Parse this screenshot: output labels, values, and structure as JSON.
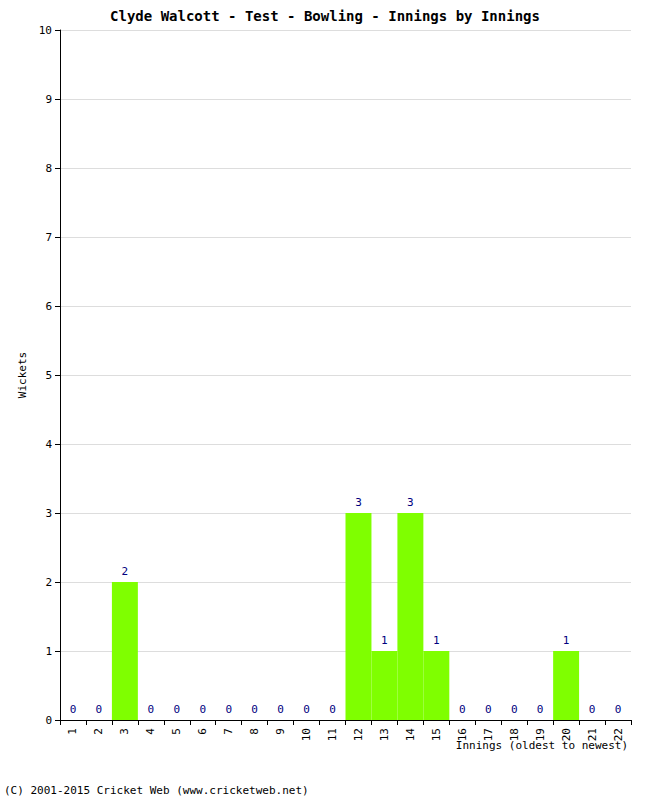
{
  "chart_data": {
    "type": "bar",
    "title": "Clyde Walcott - Test - Bowling - Innings by Innings",
    "x_label": "Innings (oldest to newest)",
    "y_label": "Wickets",
    "annotations": [
      "(C) 2001-2015 Cricket Web (www.cricketweb.net)"
    ],
    "categories": [
      "1",
      "2",
      "3",
      "4",
      "5",
      "6",
      "7",
      "8",
      "9",
      "10",
      "11",
      "12",
      "13",
      "14",
      "15",
      "16",
      "17",
      "18",
      "19",
      "20",
      "21",
      "22"
    ],
    "values": [
      0,
      0,
      2,
      0,
      0,
      0,
      0,
      0,
      0,
      0,
      0,
      3,
      1,
      3,
      1,
      0,
      0,
      0,
      0,
      1,
      0,
      0
    ],
    "color": "#7fff00",
    "ylim": [
      0,
      10
    ],
    "yticks": [
      0,
      1,
      2,
      3,
      4,
      5,
      6,
      7,
      8,
      9,
      10
    ],
    "grid": true,
    "data_labels": true
  }
}
